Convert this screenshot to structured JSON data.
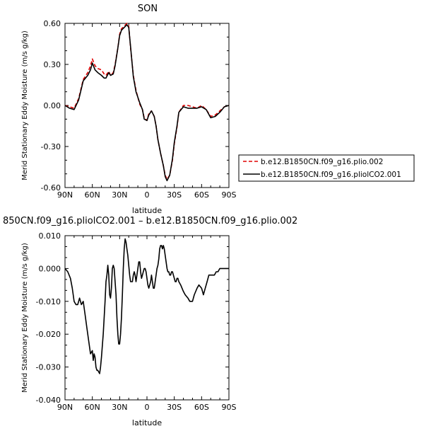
{
  "chart_data": [
    {
      "type": "line",
      "title": "SON",
      "xlabel": "latitude",
      "ylabel": "Merid Stationary Eddy Moisture (m/s g/kg)",
      "xlim": [
        90,
        -90
      ],
      "ylim": [
        -0.6,
        0.6
      ],
      "x_ticks": [
        90,
        60,
        30,
        0,
        -30,
        -60,
        -90
      ],
      "x_tick_labels": [
        "90N",
        "60N",
        "30N",
        "0",
        "30S",
        "60S",
        "90S"
      ],
      "y_ticks": [
        0.6,
        0.3,
        0.0,
        -0.3,
        -0.6
      ],
      "y_tick_labels": [
        "0.60",
        "0.30",
        "0.00",
        "-0.30",
        "-0.60"
      ],
      "legend": {
        "placement": "right",
        "entries": [
          "b.e12.B1850CN.f09_g16.plio.002",
          "b.e12.B1850CN.f09_g16.pliolCO2.001"
        ]
      },
      "series": [
        {
          "name": "b.e12.B1850CN.f09_g16.plio.002",
          "color": "#e00000",
          "dash": "dashed",
          "x": [
            90,
            85,
            80,
            75,
            70,
            65,
            62,
            60,
            57,
            54,
            50,
            47,
            45,
            42,
            40,
            37,
            35,
            32,
            30,
            28,
            25,
            22,
            20,
            18,
            15,
            12,
            10,
            8,
            5,
            3,
            0,
            -2,
            -5,
            -8,
            -10,
            -12,
            -15,
            -18,
            -20,
            -22,
            -25,
            -28,
            -30,
            -33,
            -35,
            -40,
            -45,
            -50,
            -55,
            -60,
            -65,
            -70,
            -75,
            -80,
            -85,
            -90
          ],
          "y": [
            0.0,
            -0.01,
            -0.02,
            0.05,
            0.19,
            0.24,
            0.29,
            0.34,
            0.29,
            0.27,
            0.26,
            0.23,
            0.22,
            0.25,
            0.22,
            0.24,
            0.3,
            0.42,
            0.52,
            0.56,
            0.58,
            0.6,
            0.58,
            0.42,
            0.22,
            0.11,
            0.06,
            0.01,
            -0.03,
            -0.09,
            -0.11,
            -0.06,
            -0.04,
            -0.08,
            -0.15,
            -0.25,
            -0.35,
            -0.44,
            -0.51,
            -0.54,
            -0.51,
            -0.4,
            -0.28,
            -0.16,
            -0.05,
            0.0,
            0.0,
            -0.01,
            -0.02,
            0.0,
            -0.03,
            -0.08,
            -0.07,
            -0.04,
            -0.01,
            0.0
          ]
        },
        {
          "name": "b.e12.B1850CN.f09_g16.pliolCO2.001",
          "color": "#000000",
          "dash": "solid",
          "x": [
            90,
            85,
            80,
            75,
            70,
            65,
            62,
            60,
            57,
            54,
            50,
            47,
            45,
            42,
            40,
            37,
            35,
            32,
            30,
            28,
            25,
            22,
            20,
            18,
            15,
            12,
            10,
            8,
            5,
            3,
            0,
            -2,
            -5,
            -8,
            -10,
            -12,
            -15,
            -18,
            -20,
            -22,
            -25,
            -28,
            -30,
            -33,
            -35,
            -40,
            -45,
            -50,
            -55,
            -60,
            -65,
            -70,
            -75,
            -80,
            -85,
            -90
          ],
          "y": [
            0.0,
            -0.02,
            -0.03,
            0.04,
            0.18,
            0.22,
            0.26,
            0.31,
            0.26,
            0.24,
            0.22,
            0.2,
            0.2,
            0.24,
            0.22,
            0.23,
            0.29,
            0.42,
            0.51,
            0.55,
            0.57,
            0.59,
            0.57,
            0.43,
            0.21,
            0.1,
            0.06,
            0.02,
            -0.03,
            -0.1,
            -0.11,
            -0.07,
            -0.04,
            -0.08,
            -0.15,
            -0.25,
            -0.35,
            -0.44,
            -0.52,
            -0.55,
            -0.51,
            -0.39,
            -0.27,
            -0.15,
            -0.05,
            -0.01,
            -0.02,
            -0.02,
            -0.02,
            -0.01,
            -0.03,
            -0.09,
            -0.08,
            -0.05,
            -0.01,
            0.0
          ]
        }
      ]
    },
    {
      "type": "line",
      "title": "850CN.f09_g16.pliolCO2.001 – b.e12.B1850CN.f09_g16.plio.002",
      "xlabel": "latitude",
      "ylabel": "Merid Stationary Eddy Moisture (m/s g/kg)",
      "xlim": [
        90,
        -90
      ],
      "ylim": [
        -0.04,
        0.01
      ],
      "x_ticks": [
        90,
        60,
        30,
        0,
        -30,
        -60,
        -90
      ],
      "x_tick_labels": [
        "90N",
        "60N",
        "30N",
        "0",
        "30S",
        "60S",
        "90S"
      ],
      "y_ticks": [
        0.01,
        0.0,
        -0.01,
        -0.02,
        -0.03,
        -0.04
      ],
      "y_tick_labels": [
        "0.010",
        "0.000",
        "-0.010",
        "-0.020",
        "-0.030",
        "-0.040"
      ],
      "series": [
        {
          "color": "#000000",
          "dash": "solid",
          "x": [
            90,
            87,
            84,
            82,
            80,
            78,
            76,
            74,
            72,
            70,
            68,
            66,
            64,
            62,
            60,
            59,
            58,
            57,
            56,
            55,
            54,
            52,
            51,
            50,
            48,
            46,
            45,
            44,
            43,
            42,
            41,
            40,
            39,
            38,
            37,
            36,
            35,
            34,
            33,
            32,
            31,
            30,
            29,
            28,
            27,
            26,
            25,
            24,
            23,
            22,
            21,
            20,
            19,
            18,
            17,
            16,
            15,
            14,
            13,
            12,
            11,
            10,
            9,
            8,
            7,
            6,
            5,
            4,
            3,
            2,
            1,
            0,
            -1,
            -2,
            -3,
            -4,
            -5,
            -6,
            -7,
            -8,
            -9,
            -10,
            -11,
            -12,
            -13,
            -14,
            -15,
            -16,
            -17,
            -18,
            -19,
            -20,
            -21,
            -22,
            -23,
            -24,
            -25,
            -26,
            -27,
            -28,
            -29,
            -30,
            -31,
            -32,
            -33,
            -34,
            -35,
            -37,
            -40,
            -42,
            -45,
            -47,
            -50,
            -52,
            -55,
            -57,
            -60,
            -62,
            -64,
            -66,
            -68,
            -70,
            -72,
            -74,
            -76,
            -78,
            -80,
            -82,
            -84,
            -86,
            -88,
            -90
          ],
          "y": [
            0.0,
            -0.001,
            -0.003,
            -0.006,
            -0.01,
            -0.011,
            -0.011,
            -0.009,
            -0.011,
            -0.01,
            -0.014,
            -0.018,
            -0.022,
            -0.026,
            -0.025,
            -0.028,
            -0.026,
            -0.027,
            -0.03,
            -0.031,
            -0.031,
            -0.032,
            -0.03,
            -0.027,
            -0.02,
            -0.01,
            -0.004,
            -0.002,
            0.001,
            -0.002,
            -0.008,
            -0.009,
            -0.006,
            0.0,
            0.001,
            0.0,
            -0.004,
            -0.008,
            -0.015,
            -0.02,
            -0.023,
            -0.023,
            -0.02,
            -0.015,
            -0.008,
            0.0,
            0.006,
            0.009,
            0.008,
            0.006,
            0.004,
            0.001,
            -0.002,
            -0.004,
            -0.004,
            -0.004,
            -0.002,
            -0.001,
            -0.002,
            -0.004,
            -0.002,
            0.0,
            0.002,
            0.002,
            -0.001,
            -0.003,
            -0.002,
            -0.001,
            0.0,
            0.0,
            -0.001,
            -0.003,
            -0.005,
            -0.006,
            -0.005,
            -0.004,
            -0.002,
            -0.004,
            -0.006,
            -0.006,
            -0.004,
            -0.002,
            0.0,
            0.001,
            0.003,
            0.006,
            0.007,
            0.007,
            0.006,
            0.007,
            0.006,
            0.004,
            0.002,
            0.0,
            -0.001,
            -0.001,
            -0.002,
            -0.002,
            -0.001,
            -0.001,
            -0.002,
            -0.003,
            -0.004,
            -0.004,
            -0.003,
            -0.003,
            -0.004,
            -0.005,
            -0.007,
            -0.008,
            -0.009,
            -0.01,
            -0.01,
            -0.008,
            -0.006,
            -0.005,
            -0.006,
            -0.008,
            -0.006,
            -0.004,
            -0.002,
            -0.002,
            -0.002,
            -0.002,
            -0.001,
            -0.001,
            0.0,
            0.0,
            0.0,
            0.0,
            0.0,
            0.0
          ]
        }
      ]
    }
  ]
}
